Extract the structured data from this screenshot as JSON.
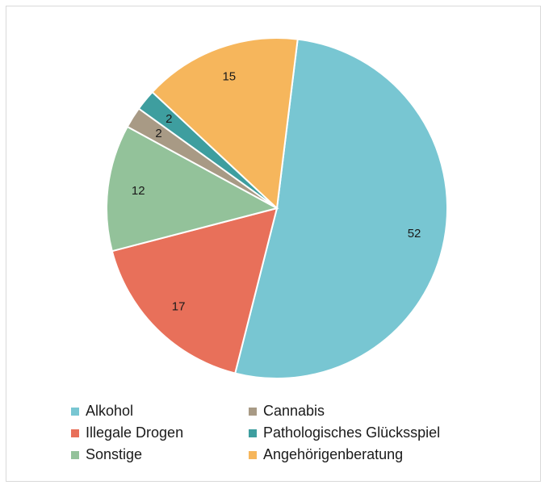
{
  "chart_data": {
    "type": "pie",
    "slices": [
      {
        "label": "Alkohol",
        "value": 52,
        "color": "#78c6d2"
      },
      {
        "label": "Illegale Drogen",
        "value": 17,
        "color": "#e8705a"
      },
      {
        "label": "Sonstige",
        "value": 12,
        "color": "#93c29a"
      },
      {
        "label": "Cannabis",
        "value": 2,
        "color": "#a89a85"
      },
      {
        "label": "Pathologisches Glücksspiel",
        "value": 2,
        "color": "#3e9e9f"
      },
      {
        "label": "Angehörigenberatung",
        "value": 15,
        "color": "#f6b65c"
      }
    ],
    "legend": {
      "placement": "bottom",
      "entries": [
        "Alkohol",
        "Cannabis",
        "Illegale Drogen",
        "Pathologisches Glücksspiel",
        "Sonstige",
        "Angehörigenberatung"
      ]
    },
    "title": ""
  }
}
